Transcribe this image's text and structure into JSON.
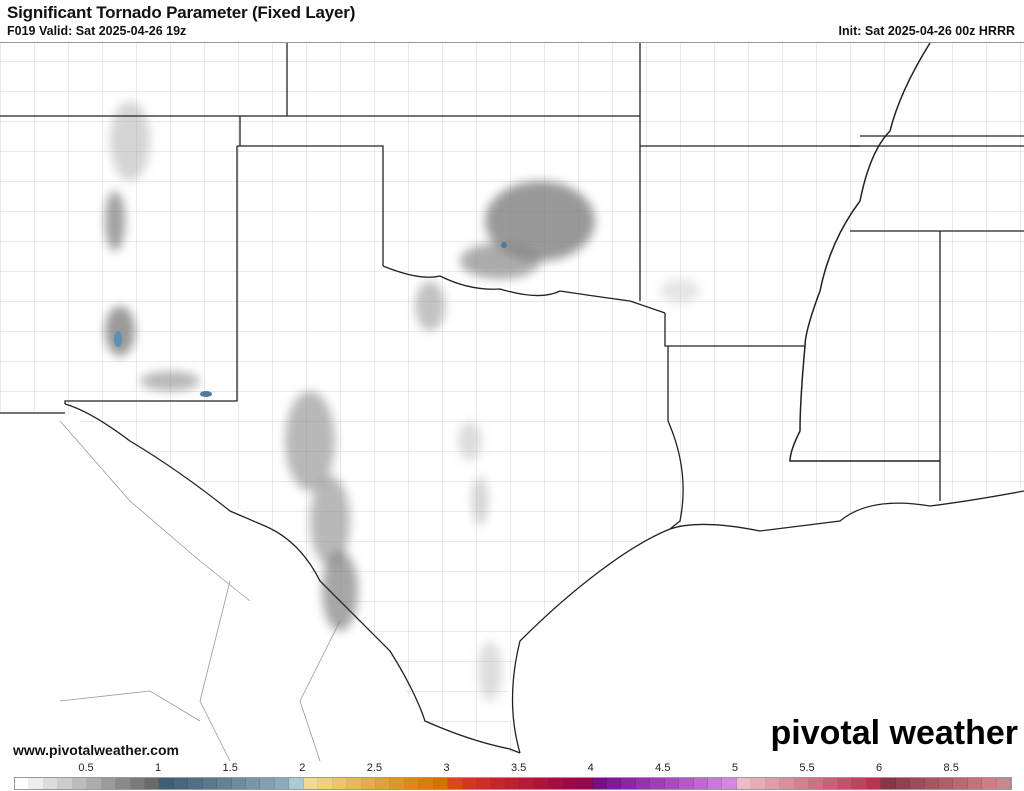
{
  "header": {
    "title": "Significant Tornado Parameter (Fixed Layer)",
    "valid": "F019 Valid: Sat 2025-04-26 19z",
    "init": "Init: Sat 2025-04-26 00z HRRR"
  },
  "footer": {
    "website": "www.pivotalweather.com",
    "logo_text": "pivotal weather"
  },
  "legend": {
    "labels": [
      "0.5",
      "1",
      "1.5",
      "2",
      "2.5",
      "3",
      "3.5",
      "4",
      "4.5",
      "5",
      "5.5",
      "6",
      "8.5"
    ],
    "colors": [
      "#ffffff",
      "#ededed",
      "#dcdcdc",
      "#cccccc",
      "#bcbcbc",
      "#acacac",
      "#9b9b9b",
      "#8a8a8a",
      "#7a7a7a",
      "#6a6a6a",
      "#3e5f78",
      "#46677f",
      "#4f7087",
      "#58798f",
      "#628397",
      "#6c8da0",
      "#7697a8",
      "#81a1b1",
      "#8cabba",
      "#a8ccd6",
      "#f2dc8c",
      "#efd07c",
      "#ecc46c",
      "#e9b85c",
      "#e6ac4c",
      "#e3a03c",
      "#e0942c",
      "#dd881c",
      "#da7c10",
      "#d87008",
      "#d9481a",
      "#d2381e",
      "#ca3024",
      "#c2282a",
      "#ba2230",
      "#b21c36",
      "#aa163c",
      "#a21042",
      "#9a0a48",
      "#900a4e",
      "#7a0c8a",
      "#84189a",
      "#8e24a6",
      "#9830b0",
      "#a23cba",
      "#ac48c2",
      "#b658ca",
      "#c068d2",
      "#ca78da",
      "#d488e0",
      "#ecbcc4",
      "#e6adb7",
      "#e09eaa",
      "#da8f9d",
      "#d48090",
      "#ce7183",
      "#c86276",
      "#c25369",
      "#bc445c",
      "#b63550",
      "#8a3646",
      "#94404f",
      "#9e4a58",
      "#a85461",
      "#b25e6a",
      "#bc6873",
      "#c6727c",
      "#d07c85",
      "#c48a90"
    ]
  },
  "map": {
    "border_color": "#222222",
    "county_color": "#bbbbbb"
  }
}
